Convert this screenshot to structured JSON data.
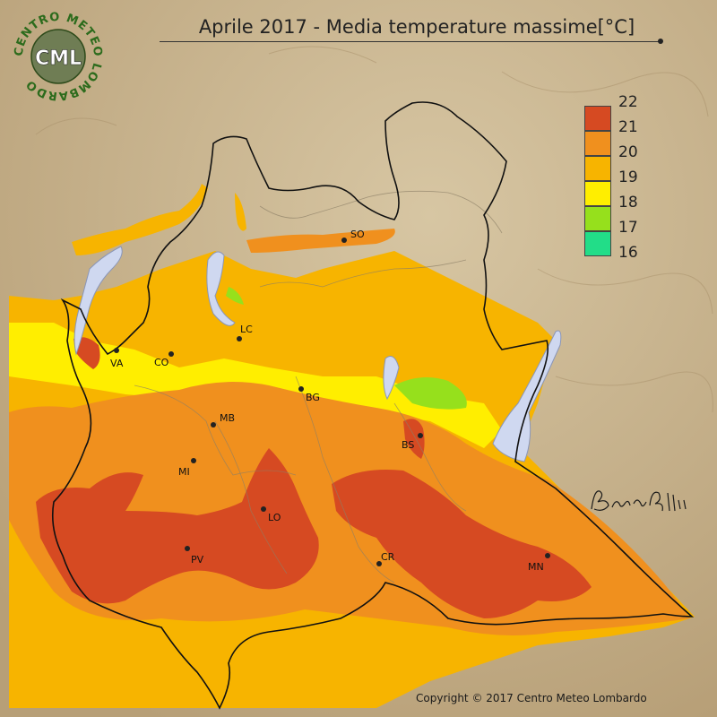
{
  "title": "Aprile 2017 - Media temperature massime[°C]",
  "logo": {
    "ring_text": "CENTRO METEO LOMBARDO",
    "abbr": "CML"
  },
  "legend": {
    "labels": [
      "22",
      "21",
      "20",
      "19",
      "18",
      "17",
      "16"
    ],
    "colors": [
      "#d64a22",
      "#f0901e",
      "#f7b400",
      "#ffee00",
      "#96e01c",
      "#22dd88"
    ]
  },
  "cities": [
    {
      "code": "SO"
    },
    {
      "code": "LC"
    },
    {
      "code": "VA"
    },
    {
      "code": "CO"
    },
    {
      "code": "BG"
    },
    {
      "code": "MB"
    },
    {
      "code": "BS"
    },
    {
      "code": "MI"
    },
    {
      "code": "LO"
    },
    {
      "code": "PV"
    },
    {
      "code": "CR"
    },
    {
      "code": "MN"
    }
  ],
  "signature": "Bruno Gilli",
  "copyright": "Copyright © 2017 Centro Meteo Lombardo"
}
